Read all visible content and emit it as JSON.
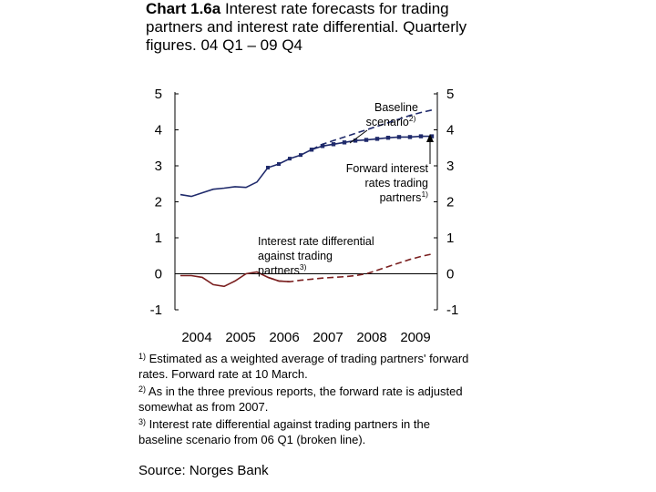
{
  "title": {
    "number": "Chart 1.6a",
    "text": "Interest rate forecasts for trading partners and interest rate differential. Quarterly figures. 04 Q1 – 09 Q4"
  },
  "annotations": {
    "baseline_1": "Baseline",
    "baseline_2": "scenario",
    "baseline_sup": "2)",
    "forward_1": "Forward interest",
    "forward_2": "rates trading",
    "forward_3": "partners",
    "forward_sup": "1)",
    "diff_1": "Interest rate differential",
    "diff_2": "against trading",
    "diff_3": "partners",
    "diff_sup": "3)"
  },
  "notes": [
    {
      "marker": "1)",
      "text": " Estimated as a weighted average of trading partners' forward rates. Forward rate at 10 March."
    },
    {
      "marker": "2)",
      "text": " As in the three previous reports, the forward rate is adjusted somewhat as from 2007."
    },
    {
      "marker": "3)",
      "text": " Interest rate differential against trading partners in the baseline scenario from  06 Q1 (broken line)."
    }
  ],
  "source": "Source: Norges Bank",
  "colors": {
    "trading_partners": "#1f2a6b",
    "differential": "#7a1f1f",
    "axis": "#000000"
  },
  "chart_data": {
    "type": "line",
    "title": "Chart 1.6a Interest rate forecasts for trading partners and interest rate differential. Quarterly figures. 04 Q1 – 09 Q4",
    "x_tick_labels": [
      "2004",
      "2005",
      "2006",
      "2007",
      "2008",
      "2009"
    ],
    "y_ticks": [
      -1,
      0,
      1,
      2,
      3,
      4,
      5
    ],
    "y_tick_labels": [
      "-1",
      "0",
      "1",
      "2",
      "3",
      "4",
      "5"
    ],
    "ylim": [
      -1,
      5
    ],
    "x_range": [
      "2004 Q1",
      "2009 Q4"
    ],
    "grid": false,
    "series": [
      {
        "name": "Trading partners – actual",
        "style": "solid",
        "color": "#1f2a6b",
        "x": [
          "2004 Q1",
          "2004 Q2",
          "2004 Q3",
          "2004 Q4",
          "2005 Q1",
          "2005 Q2",
          "2005 Q3",
          "2005 Q4",
          "2006 Q1",
          "2006 Q2",
          "2006 Q3",
          "2006 Q4",
          "2007 Q1"
        ],
        "y": [
          2.2,
          2.15,
          2.25,
          2.35,
          2.38,
          2.42,
          2.4,
          2.55,
          2.95,
          3.05,
          3.2,
          3.3,
          3.45
        ]
      },
      {
        "name": "Baseline scenario",
        "style": "dashed",
        "color": "#1f2a6b",
        "x": [
          "2007 Q1",
          "2007 Q2",
          "2007 Q3",
          "2007 Q4",
          "2008 Q1",
          "2008 Q2",
          "2008 Q3",
          "2008 Q4",
          "2009 Q1",
          "2009 Q2",
          "2009 Q3",
          "2009 Q4"
        ],
        "y": [
          3.45,
          3.6,
          3.7,
          3.8,
          3.9,
          4.0,
          4.1,
          4.2,
          4.3,
          4.4,
          4.48,
          4.55
        ]
      },
      {
        "name": "Forward interest rates trading partners",
        "style": "solid-markers",
        "color": "#1f2a6b",
        "x": [
          "2007 Q1",
          "2007 Q2",
          "2007 Q3",
          "2007 Q4",
          "2008 Q1",
          "2008 Q2",
          "2008 Q3",
          "2008 Q4",
          "2009 Q1",
          "2009 Q2",
          "2009 Q3",
          "2009 Q4"
        ],
        "y": [
          3.45,
          3.55,
          3.6,
          3.65,
          3.7,
          3.72,
          3.75,
          3.78,
          3.8,
          3.8,
          3.82,
          3.82
        ]
      },
      {
        "name": "Interest rate differential – actual",
        "style": "solid",
        "color": "#7a1f1f",
        "x": [
          "2004 Q1",
          "2004 Q2",
          "2004 Q3",
          "2004 Q4",
          "2005 Q1",
          "2005 Q2",
          "2005 Q3",
          "2005 Q4",
          "2006 Q1",
          "2006 Q2",
          "2006 Q3"
        ],
        "y": [
          -0.05,
          -0.05,
          -0.1,
          -0.3,
          -0.35,
          -0.2,
          0.0,
          0.05,
          -0.1,
          -0.2,
          -0.22
        ]
      },
      {
        "name": "Interest rate differential against trading partners",
        "style": "dashed",
        "color": "#7a1f1f",
        "x": [
          "2006 Q1",
          "2006 Q2",
          "2006 Q3",
          "2006 Q4",
          "2007 Q1",
          "2007 Q2",
          "2007 Q3",
          "2007 Q4",
          "2008 Q1",
          "2008 Q2",
          "2008 Q3",
          "2008 Q4",
          "2009 Q1",
          "2009 Q2",
          "2009 Q3",
          "2009 Q4"
        ],
        "y": [
          -0.1,
          -0.2,
          -0.22,
          -0.18,
          -0.15,
          -0.12,
          -0.1,
          -0.08,
          -0.05,
          0.0,
          0.1,
          0.2,
          0.3,
          0.4,
          0.48,
          0.55
        ]
      }
    ]
  }
}
